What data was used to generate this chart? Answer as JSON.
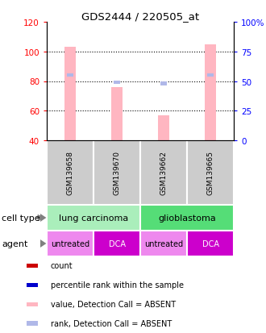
{
  "title": "GDS2444 / 220505_at",
  "samples": [
    "GSM139658",
    "GSM139670",
    "GSM139662",
    "GSM139665"
  ],
  "value_bars": [
    103,
    76,
    57,
    105
  ],
  "rank_bars": [
    55,
    49,
    48,
    55
  ],
  "ylim_left": [
    40,
    120
  ],
  "ylim_right": [
    0,
    100
  ],
  "left_ticks": [
    40,
    60,
    80,
    100,
    120
  ],
  "right_ticks": [
    0,
    25,
    50,
    75,
    100
  ],
  "right_tick_labels": [
    "0",
    "25",
    "50",
    "75",
    "100%"
  ],
  "bar_color_value": "#ffb6c1",
  "bar_color_rank": "#b0b8e8",
  "sample_bg": "#cccccc",
  "cell_type_1_color": "#aaeebb",
  "cell_type_2_color": "#55dd77",
  "agent_light_color": "#ee88ee",
  "agent_dark_color": "#cc00cc",
  "agents": [
    "untreated",
    "DCA",
    "untreated",
    "DCA"
  ],
  "legend_items": [
    {
      "color": "#cc0000",
      "label": "count"
    },
    {
      "color": "#0000cc",
      "label": "percentile rank within the sample"
    },
    {
      "color": "#ffb6c1",
      "label": "value, Detection Call = ABSENT"
    },
    {
      "color": "#b0b8e8",
      "label": "rank, Detection Call = ABSENT"
    }
  ]
}
